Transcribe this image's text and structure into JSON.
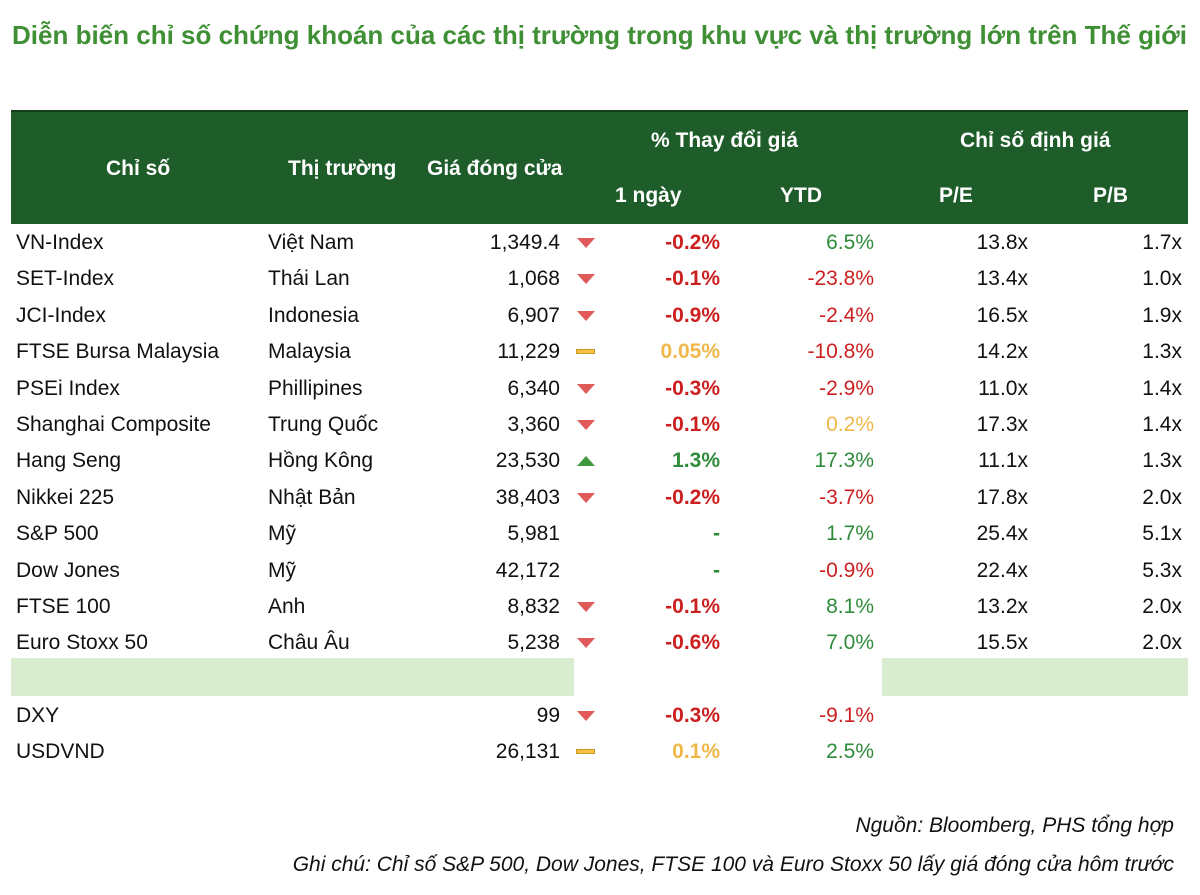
{
  "title": "Diễn biến chỉ số chứng khoán của các thị trường trong khu vực và thị trường lớn trên Thế giới",
  "header": {
    "index": "Chỉ số",
    "market": "Thị trường",
    "close": "Giá đóng cửa",
    "pct_change": "% Thay đổi giá",
    "one_day": "1 ngày",
    "ytd": "YTD",
    "valuation": "Chỉ số định giá",
    "pe": "P/E",
    "pb": "P/B"
  },
  "colors": {
    "header_bg": "#1e5c2a",
    "title": "#3f8f34",
    "negative": "#cc1f1f",
    "positive": "#2e8b3a",
    "flat": "#f0b84a",
    "band": "#d9ecd0"
  },
  "rows": [
    {
      "index": "VN-Index",
      "market": "Việt Nam",
      "close": "1,349.4",
      "trend": "down",
      "day": "-0.2%",
      "day_color": "#cc1f1f",
      "ytd": "6.5%",
      "ytd_color": "#2e8b3a",
      "pe": "13.8x",
      "pb": "1.7x"
    },
    {
      "index": "SET-Index",
      "market": "Thái Lan",
      "close": "1,068",
      "trend": "down",
      "day": "-0.1%",
      "day_color": "#cc1f1f",
      "ytd": "-23.8%",
      "ytd_color": "#cc1f1f",
      "pe": "13.4x",
      "pb": "1.0x"
    },
    {
      "index": "JCI-Index",
      "market": "Indonesia",
      "close": "6,907",
      "trend": "down",
      "day": "-0.9%",
      "day_color": "#cc1f1f",
      "ytd": "-2.4%",
      "ytd_color": "#cc1f1f",
      "pe": "16.5x",
      "pb": "1.9x"
    },
    {
      "index": "FTSE Bursa Malaysia",
      "market": "Malaysia",
      "close": "11,229",
      "trend": "flat",
      "day": "0.05%",
      "day_color": "#f0b84a",
      "ytd": "-10.8%",
      "ytd_color": "#cc1f1f",
      "pe": "14.2x",
      "pb": "1.3x"
    },
    {
      "index": "PSEi Index",
      "market": "Phillipines",
      "close": "6,340",
      "trend": "down",
      "day": "-0.3%",
      "day_color": "#cc1f1f",
      "ytd": "-2.9%",
      "ytd_color": "#cc1f1f",
      "pe": "11.0x",
      "pb": "1.4x"
    },
    {
      "index": "Shanghai Composite",
      "market": "Trung Quốc",
      "close": "3,360",
      "trend": "down",
      "day": "-0.1%",
      "day_color": "#cc1f1f",
      "ytd": "0.2%",
      "ytd_color": "#f0b84a",
      "pe": "17.3x",
      "pb": "1.4x"
    },
    {
      "index": "Hang Seng",
      "market": "Hồng Kông",
      "close": "23,530",
      "trend": "up",
      "day": "1.3%",
      "day_color": "#2e8b3a",
      "ytd": "17.3%",
      "ytd_color": "#2e8b3a",
      "pe": "11.1x",
      "pb": "1.3x"
    },
    {
      "index": "Nikkei 225",
      "market": "Nhật Bản",
      "close": "38,403",
      "trend": "down",
      "day": "-0.2%",
      "day_color": "#cc1f1f",
      "ytd": "-3.7%",
      "ytd_color": "#cc1f1f",
      "pe": "17.8x",
      "pb": "2.0x"
    },
    {
      "index": "S&P 500",
      "market": "Mỹ",
      "close": "5,981",
      "trend": "none",
      "day": "-",
      "day_color": "#2e8b3a",
      "ytd": "1.7%",
      "ytd_color": "#2e8b3a",
      "pe": "25.4x",
      "pb": "5.1x"
    },
    {
      "index": "Dow Jones",
      "market": "Mỹ",
      "close": "42,172",
      "trend": "none",
      "day": "-",
      "day_color": "#2e8b3a",
      "ytd": "-0.9%",
      "ytd_color": "#cc1f1f",
      "pe": "22.4x",
      "pb": "5.3x"
    },
    {
      "index": "FTSE 100",
      "market": "Anh",
      "close": "8,832",
      "trend": "down",
      "day": "-0.1%",
      "day_color": "#cc1f1f",
      "ytd": "8.1%",
      "ytd_color": "#2e8b3a",
      "pe": "13.2x",
      "pb": "2.0x"
    },
    {
      "index": "Euro Stoxx 50",
      "market": "Châu Âu",
      "close": "5,238",
      "trend": "down",
      "day": "-0.6%",
      "day_color": "#cc1f1f",
      "ytd": "7.0%",
      "ytd_color": "#2e8b3a",
      "pe": "15.5x",
      "pb": "2.0x"
    }
  ],
  "fx_rows": [
    {
      "index": "DXY",
      "market": "",
      "close": "99",
      "trend": "down",
      "day": "-0.3%",
      "day_color": "#cc1f1f",
      "ytd": "-9.1%",
      "ytd_color": "#cc1f1f",
      "pe": "",
      "pb": ""
    },
    {
      "index": "USDVND",
      "market": "",
      "close": "26,131",
      "trend": "flat",
      "day": "0.1%",
      "day_color": "#f0b84a",
      "ytd": "2.5%",
      "ytd_color": "#2e8b3a",
      "pe": "",
      "pb": ""
    }
  ],
  "source": "Nguồn: Bloomberg, PHS tổng hợp",
  "note": "Ghi chú: Chỉ số S&P 500, Dow Jones, FTSE 100 và Euro Stoxx 50 lấy giá đóng cửa hôm trước"
}
